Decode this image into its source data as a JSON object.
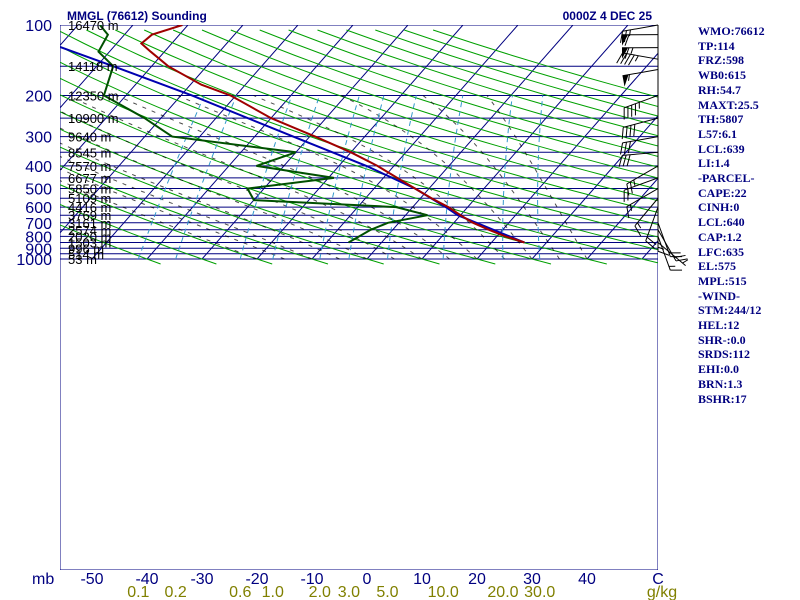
{
  "header": {
    "title": "MMGL (76612) Sounding",
    "time": "0000Z  4 DEC 25"
  },
  "chart_data": {
    "type": "skew-t",
    "title": "MMGL (76612) Sounding",
    "y_unit_label": "mb",
    "x_unit_label": "C",
    "mixing_unit_label": "g/kg",
    "pressure_levels": [
      100,
      200,
      300,
      400,
      500,
      600,
      700,
      800,
      900,
      1000
    ],
    "height_labels": [
      {
        "p": 100,
        "text": "16470 m"
      },
      {
        "p": 150,
        "text": "14118 m"
      },
      {
        "p": 200,
        "text": "12350 m"
      },
      {
        "p": 250,
        "text": "10900 m"
      },
      {
        "p": 300,
        "text": "9640 m"
      },
      {
        "p": 350,
        "text": "8545 m"
      },
      {
        "p": 400,
        "text": "7570 m"
      },
      {
        "p": 450,
        "text": "6677 m"
      },
      {
        "p": 500,
        "text": "5850 m"
      },
      {
        "p": 550,
        "text": "5109 m"
      },
      {
        "p": 600,
        "text": "4416 m"
      },
      {
        "p": 650,
        "text": "3769 m"
      },
      {
        "p": 700,
        "text": "3161 m"
      },
      {
        "p": 750,
        "text": "2574 m"
      },
      {
        "p": 800,
        "text": "2020 m"
      },
      {
        "p": 850,
        "text": "1503 m"
      },
      {
        "p": 900,
        "text": "996 m"
      },
      {
        "p": 950,
        "text": "514 m"
      },
      {
        "p": 1000,
        "text": "53 m"
      }
    ],
    "temp_ticks": [
      -50,
      -40,
      -30,
      -20,
      -10,
      0,
      10,
      20,
      30,
      40
    ],
    "mixing_ratio_ticks": [
      "0.1",
      "0.2",
      "0.6",
      "1.0",
      "2.0",
      "3.0",
      "5.0",
      "10.0",
      "20.0",
      "30.0"
    ],
    "temperature_profile": [
      {
        "p": 850,
        "t": 26.0
      },
      {
        "p": 800,
        "t": 21.5
      },
      {
        "p": 750,
        "t": 17.5
      },
      {
        "p": 700,
        "t": 13.5
      },
      {
        "p": 650,
        "t": 10.0
      },
      {
        "p": 600,
        "t": 6.5
      },
      {
        "p": 550,
        "t": 2.0
      },
      {
        "p": 500,
        "t": -2.5
      },
      {
        "p": 450,
        "t": -7.5
      },
      {
        "p": 400,
        "t": -13.0
      },
      {
        "p": 350,
        "t": -20.0
      },
      {
        "p": 300,
        "t": -29.0
      },
      {
        "p": 250,
        "t": -40.0
      },
      {
        "p": 200,
        "t": -51.0
      },
      {
        "p": 180,
        "t": -58.0
      },
      {
        "p": 150,
        "t": -67.0
      },
      {
        "p": 130,
        "t": -72.5
      },
      {
        "p": 120,
        "t": -75.5
      },
      {
        "p": 110,
        "t": -75.0
      },
      {
        "p": 100,
        "t": -71.0
      }
    ],
    "dewpoint_profile": [
      {
        "p": 850,
        "t": -6.0
      },
      {
        "p": 750,
        "t": -4.0
      },
      {
        "p": 700,
        "t": -2.0
      },
      {
        "p": 650,
        "t": 4.0
      },
      {
        "p": 600,
        "t": -3.0
      },
      {
        "p": 560,
        "t": -30.0
      },
      {
        "p": 500,
        "t": -33.0
      },
      {
        "p": 450,
        "t": -19.0
      },
      {
        "p": 400,
        "t": -35.0
      },
      {
        "p": 350,
        "t": -30.0
      },
      {
        "p": 300,
        "t": -55.0
      },
      {
        "p": 250,
        "t": -63.0
      },
      {
        "p": 200,
        "t": -74.0
      },
      {
        "p": 150,
        "t": -77.0
      },
      {
        "p": 130,
        "t": -82.0
      },
      {
        "p": 110,
        "t": -83.0
      },
      {
        "p": 100,
        "t": -86.0
      }
    ],
    "parcel_profile": [
      {
        "p": 850,
        "t": 26.0
      },
      {
        "p": 650,
        "t": 9.5
      },
      {
        "p": 600,
        "t": 6.0
      },
      {
        "p": 500,
        "t": -2.5
      },
      {
        "p": 400,
        "t": -15.0
      },
      {
        "p": 300,
        "t": -33.0
      },
      {
        "p": 200,
        "t": -58.0
      },
      {
        "p": 150,
        "t": -77.0
      },
      {
        "p": 120,
        "t": -92.0
      }
    ],
    "wind_barbs": [
      {
        "p": 100,
        "dir": 260,
        "spd": 25
      },
      {
        "p": 110,
        "dir": 270,
        "spd": 60
      },
      {
        "p": 125,
        "dir": 270,
        "spd": 65
      },
      {
        "p": 140,
        "dir": 280,
        "spd": 45
      },
      {
        "p": 155,
        "dir": 260,
        "spd": 55
      },
      {
        "p": 200,
        "dir": 250,
        "spd": 45
      },
      {
        "p": 250,
        "dir": 255,
        "spd": 40
      },
      {
        "p": 300,
        "dir": 260,
        "spd": 30
      },
      {
        "p": 350,
        "dir": 265,
        "spd": 30
      },
      {
        "p": 400,
        "dir": 240,
        "spd": 25
      },
      {
        "p": 450,
        "dir": 250,
        "spd": 20
      },
      {
        "p": 500,
        "dir": 240,
        "spd": 15
      },
      {
        "p": 550,
        "dir": 220,
        "spd": 15
      },
      {
        "p": 600,
        "dir": 200,
        "spd": 20
      },
      {
        "p": 650,
        "dir": 180,
        "spd": 15
      },
      {
        "p": 700,
        "dir": 160,
        "spd": 20
      },
      {
        "p": 750,
        "dir": 150,
        "spd": 20
      },
      {
        "p": 800,
        "dir": 160,
        "spd": 15
      },
      {
        "p": 850,
        "dir": 130,
        "spd": 5
      }
    ],
    "colors": {
      "isobar": "#000080",
      "isotherm": "#000080",
      "dry_adiabat": "#00a000",
      "moist_adiabat": "#000000",
      "mixing_ratio": "#3399cc",
      "temperature": "#a00000",
      "dewpoint": "#005000",
      "parcel": "#0000b0",
      "label": "#000080",
      "mixing_label": "#808000"
    }
  },
  "indices": [
    "WMO:76612",
    "TP:114",
    "FRZ:598",
    "WB0:615",
    "RH:54.7",
    "MAXT:25.5",
    "TH:5807",
    "L57:6.1",
    "LCL:639",
    "LI:1.4",
    "-PARCEL-",
    "CAPE:22",
    "CINH:0",
    "LCL:640",
    "CAP:1.2",
    "LFC:635",
    "EL:575",
    "MPL:515",
    "-WIND-",
    "STM:244/12",
    "HEL:12",
    "SHR-:0.0",
    "SRDS:112",
    "EHI:0.0",
    "BRN:1.3",
    "BSHR:17"
  ]
}
